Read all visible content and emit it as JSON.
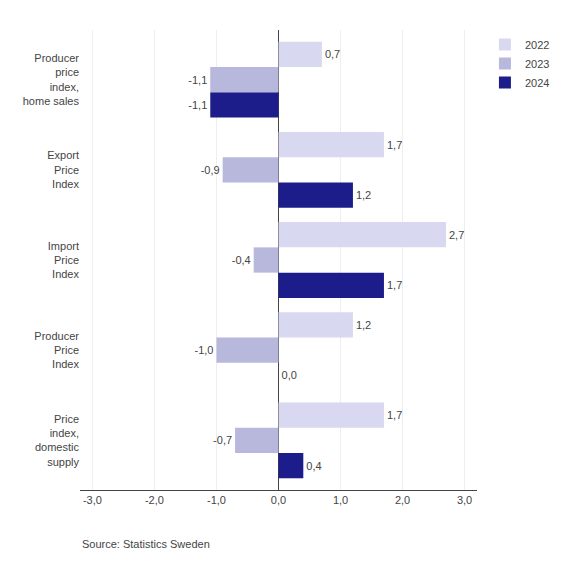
{
  "chart_data": {
    "type": "bar",
    "orientation": "horizontal",
    "categories": [
      "Price\nindex,\ndomestic\nsupply",
      "Producer\nPrice\nIndex",
      "Import\nPrice\nIndex",
      "Export\nPrice\nIndex",
      "Producer\nprice\nindex,\nhome sales"
    ],
    "series": [
      {
        "name": "2022",
        "color": "#d8d8f0",
        "values": [
          1.7,
          1.2,
          2.7,
          1.7,
          0.7
        ],
        "value_labels": [
          "1,7",
          "1,2",
          "2,7",
          "1,7",
          "0,7"
        ]
      },
      {
        "name": "2023",
        "color": "#b8b8dc",
        "values": [
          -0.7,
          -1.0,
          -0.4,
          -0.9,
          -1.1
        ],
        "value_labels": [
          "-0,7",
          "-1,0",
          "-0,4",
          "-0,9",
          "-1,1"
        ]
      },
      {
        "name": "2024",
        "color": "#1c1c8a",
        "values": [
          0.4,
          0.0,
          1.7,
          1.2,
          -1.1
        ],
        "value_labels": [
          "0,4",
          "0,0",
          "1,7",
          "1,2",
          "-1,1"
        ]
      }
    ],
    "xlim": [
      -3.2,
      3.2
    ],
    "xticks": [
      {
        "value": -3.0,
        "label": "-3,0"
      },
      {
        "value": -2.0,
        "label": "-2,0"
      },
      {
        "value": -1.0,
        "label": "-1,0"
      },
      {
        "value": 0.0,
        "label": "0,0"
      },
      {
        "value": 1.0,
        "label": "1,0"
      },
      {
        "value": 2.0,
        "label": "2,0"
      },
      {
        "value": 3.0,
        "label": "3,0"
      }
    ],
    "grid": true,
    "data_labels": true,
    "legend": "upper right",
    "annotations": [
      "Source: Statistics Sweden"
    ]
  }
}
